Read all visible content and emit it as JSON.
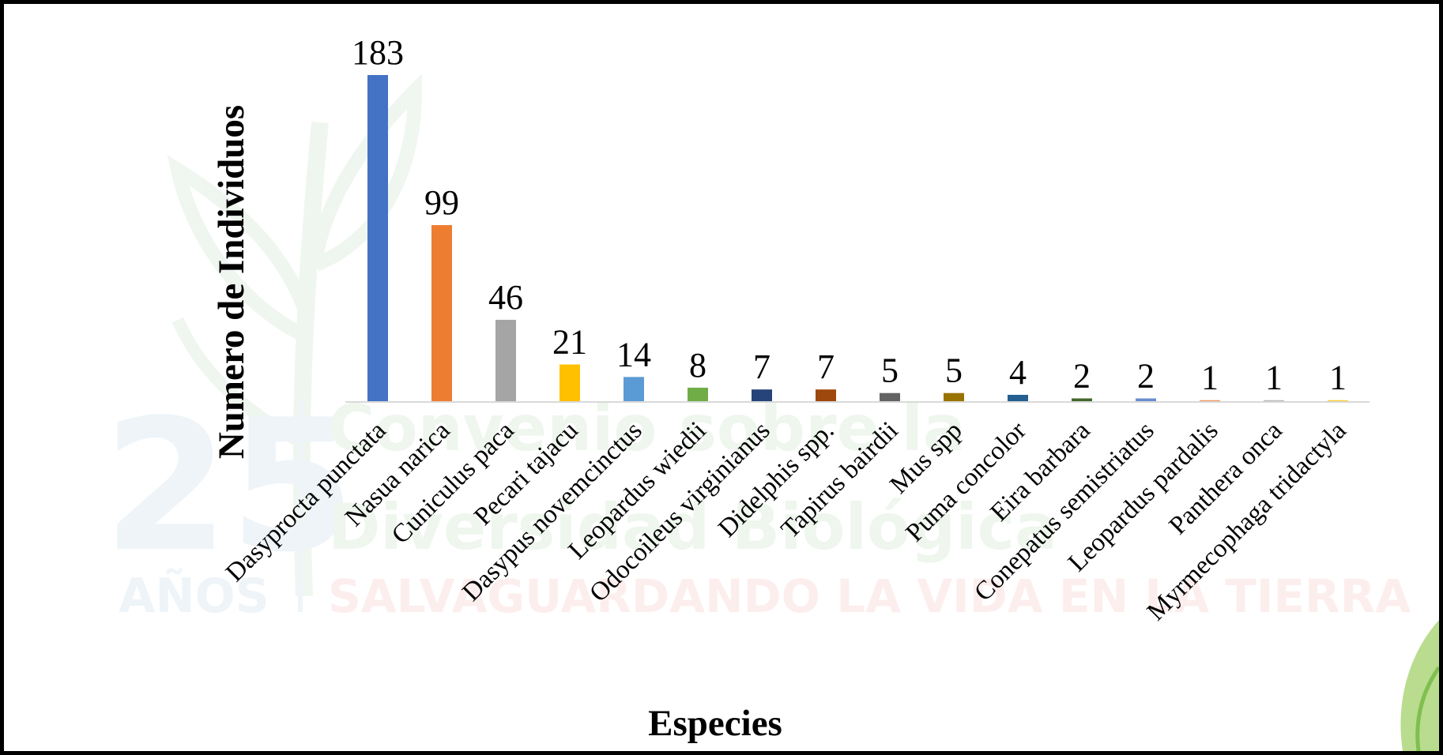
{
  "chart_data": {
    "type": "bar",
    "title": "",
    "xlabel": "Especies",
    "ylabel": "Numero de Individuos",
    "ylim": [
      0,
      183
    ],
    "grid": false,
    "legend": "none",
    "categories": [
      "Dasyprocta punctata",
      "Nasua narica",
      "Cuniculus paca",
      "Pecari tajacu",
      "Dasypus novemcinctus",
      "Leopardus wiedii",
      "Odocoileus virginianus",
      "Didelphis spp.",
      "Tapirus bairdii",
      "Mus spp",
      "Puma concolor",
      "Eira barbara",
      "Conepatus semistriatus",
      "Leopardus pardalis",
      "Panthera onca",
      "Myrmecophaga tridactyla"
    ],
    "values": [
      183,
      99,
      46,
      21,
      14,
      8,
      7,
      7,
      5,
      5,
      4,
      2,
      2,
      1,
      1,
      1
    ],
    "colors": [
      "#4472c4",
      "#ed7d31",
      "#a5a5a5",
      "#ffc000",
      "#5b9bd5",
      "#70ad47",
      "#264478",
      "#9e480e",
      "#636363",
      "#997300",
      "#255e91",
      "#43682b",
      "#698ed0",
      "#f1975a",
      "#b7b7b7",
      "#ffcd33"
    ]
  },
  "watermark": {
    "number": "25",
    "years": "AÑOS",
    "line1": "Convenio sobre la",
    "line2": "Diversidad Biológica",
    "line3": "SALVAGUARDANDO LA VIDA EN LA TIERRA"
  }
}
